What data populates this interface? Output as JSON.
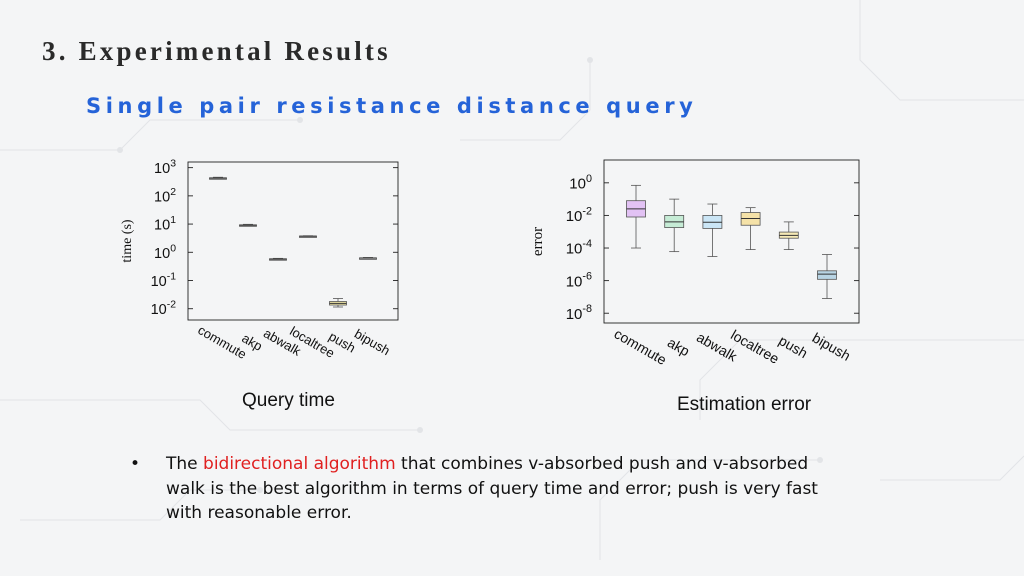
{
  "slide": {
    "title": "3. Experimental Results",
    "subtitle": "Single pair resistance distance query"
  },
  "captions": {
    "left": "Query time",
    "right": "Estimation error"
  },
  "bullet": {
    "marker": "•",
    "prefix": "The ",
    "highlight": "bidirectional algorithm",
    "rest": " that combines v-absorbed push and v-absorbed walk is the best algorithm in terms of query time and error; push is very fast with reasonable error."
  },
  "colors": {
    "highlight": "#e02020",
    "subtitle": "#2563d8"
  },
  "chart_data": [
    {
      "type": "box",
      "caption": "Query time",
      "ylabel": "time (s)",
      "yscale": "log",
      "ylim_exp": [
        -2.4,
        3.2
      ],
      "ytick_exps": [
        3,
        2,
        1,
        0,
        -1,
        -2
      ],
      "categories": [
        "commute",
        "akp",
        "abwalk",
        "localtree",
        "push",
        "bipush"
      ],
      "boxes": [
        {
          "min": 398,
          "q1": 417,
          "median": 427,
          "q3": 437,
          "max": 457
        },
        {
          "min": 8.5,
          "q1": 8.9,
          "median": 9.1,
          "q3": 9.4,
          "max": 9.8
        },
        {
          "min": 0.54,
          "q1": 0.56,
          "median": 0.575,
          "q3": 0.59,
          "max": 0.61
        },
        {
          "min": 3.6,
          "q1": 3.68,
          "median": 3.72,
          "q3": 3.78,
          "max": 3.85
        },
        {
          "min": 0.0115,
          "q1": 0.0135,
          "median": 0.0155,
          "q3": 0.018,
          "max": 0.023
        },
        {
          "min": 0.6,
          "q1": 0.615,
          "median": 0.625,
          "q3": 0.635,
          "max": 0.655
        }
      ],
      "box_colors": [
        "#cccccc",
        "#cccccc",
        "#cccccc",
        "#cccccc",
        "#f3eaa8",
        "#cccccc"
      ],
      "grid": false
    },
    {
      "type": "box",
      "caption": "Estimation error",
      "ylabel": "error",
      "yscale": "log",
      "ylim_exp": [
        -8.6,
        1.4
      ],
      "ytick_exps": [
        0,
        -2,
        -4,
        -6,
        -8
      ],
      "categories": [
        "commute",
        "akp",
        "abwalk",
        "localtree",
        "push",
        "bipush"
      ],
      "boxes": [
        {
          "min": 0.0001,
          "q1": 0.008,
          "median": 0.025,
          "q3": 0.08,
          "max": 0.7
        },
        {
          "min": 6e-05,
          "q1": 0.0018,
          "median": 0.004,
          "q3": 0.01,
          "max": 0.1
        },
        {
          "min": 3e-05,
          "q1": 0.0016,
          "median": 0.0038,
          "q3": 0.01,
          "max": 0.05
        },
        {
          "min": 8e-05,
          "q1": 0.0025,
          "median": 0.0065,
          "q3": 0.015,
          "max": 0.03
        },
        {
          "min": 8e-05,
          "q1": 0.0004,
          "median": 0.0006,
          "q3": 0.00095,
          "max": 0.004
        },
        {
          "min": 8e-08,
          "q1": 1.2e-06,
          "median": 2.5e-06,
          "q3": 4e-06,
          "max": 4e-05
        }
      ],
      "box_colors": [
        "#e2c2f4",
        "#c6ecd6",
        "#cbe6f6",
        "#f5e2a8",
        "#f6eab6",
        "#b8d4e4"
      ],
      "grid": false
    }
  ]
}
